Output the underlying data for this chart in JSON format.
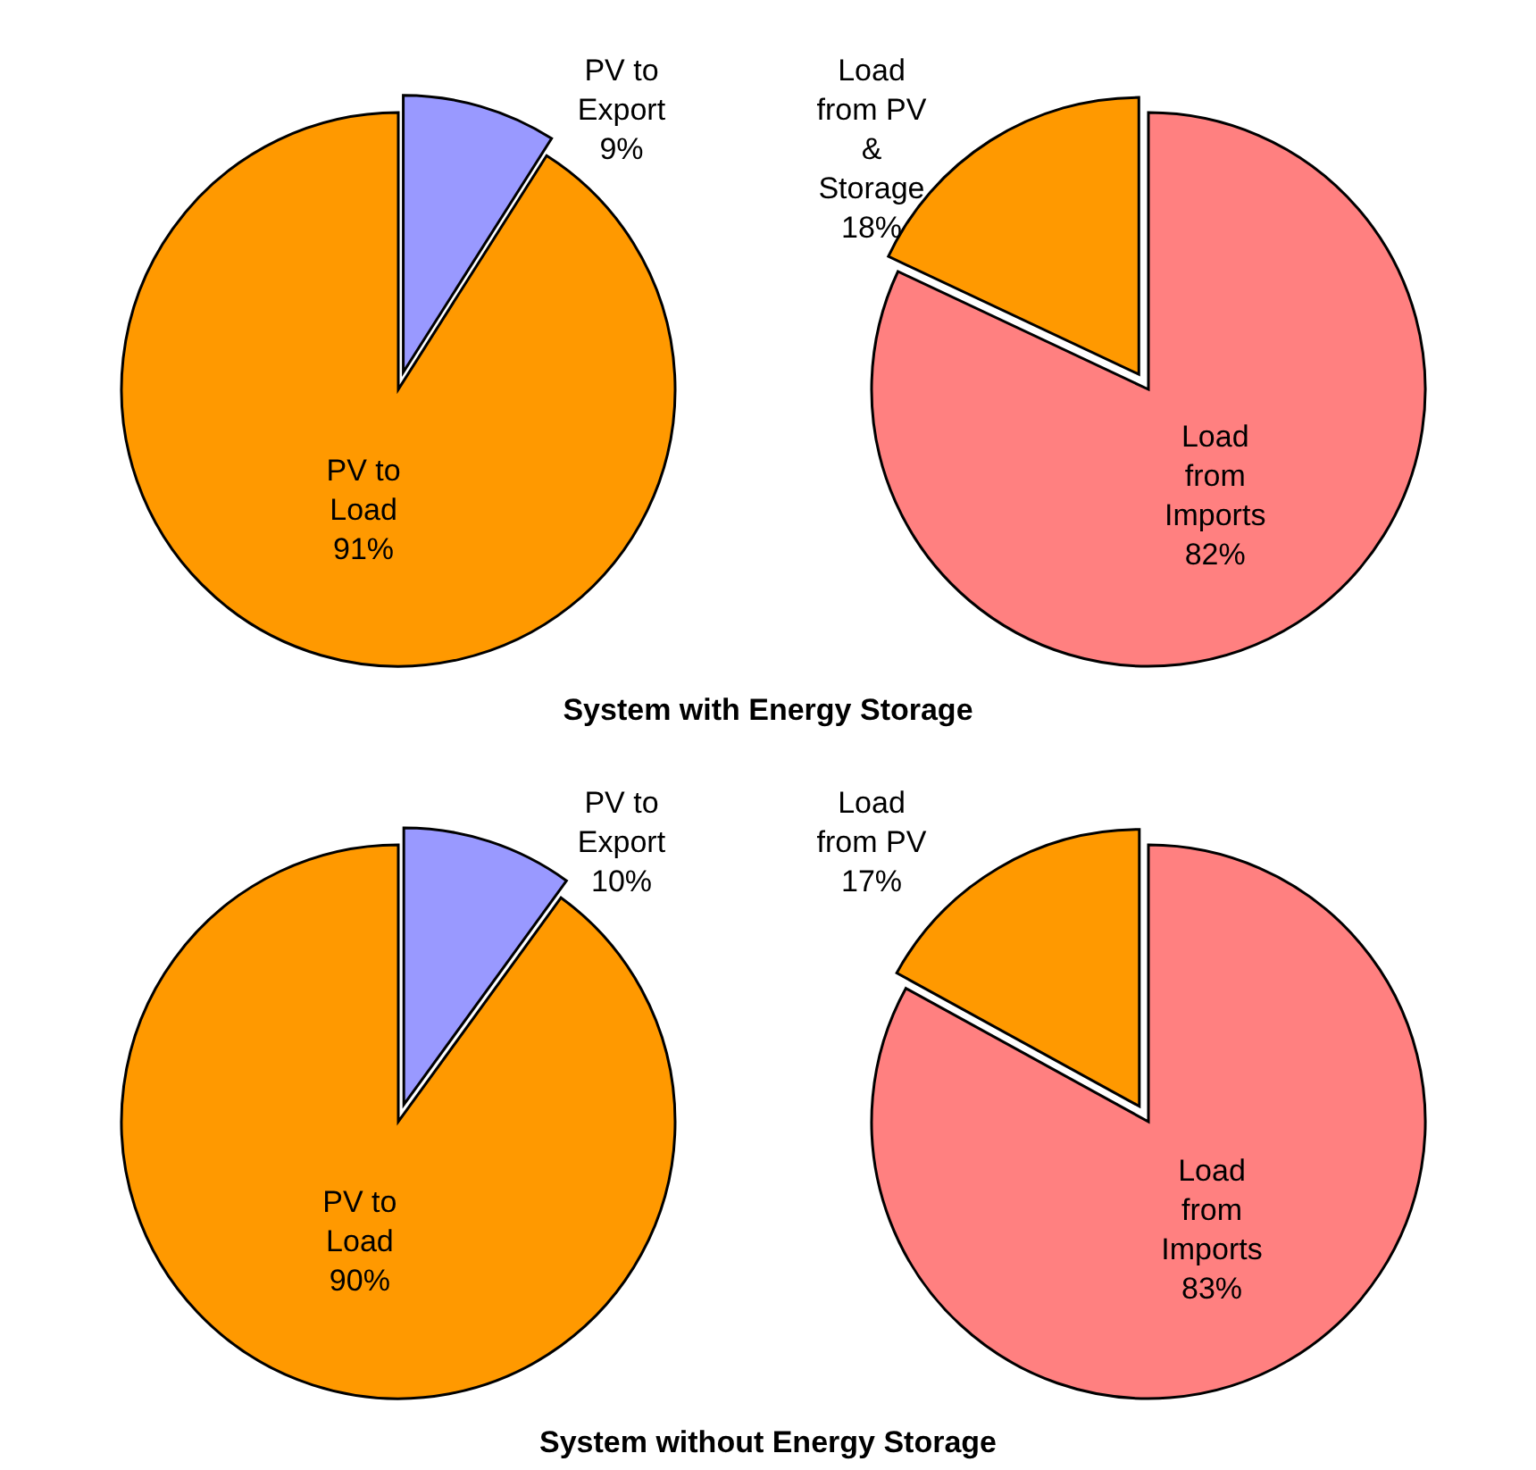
{
  "chart_data": [
    {
      "type": "pie",
      "title": "System with Energy Storage",
      "categories": [
        "PV to Export",
        "PV to Load"
      ],
      "values": [
        9,
        91
      ],
      "colors": [
        "#9999ff",
        "#ff9900"
      ],
      "value_labels": [
        "9%",
        "91%"
      ]
    },
    {
      "type": "pie",
      "categories": [
        "Load from PV & Storage",
        "Load from Imports"
      ],
      "values": [
        18,
        82
      ],
      "colors": [
        "#ff9900",
        "#ff8080"
      ],
      "value_labels": [
        "18%",
        "82%"
      ]
    },
    {
      "type": "pie",
      "title": "System without Energy Storage",
      "categories": [
        "PV to Export",
        "PV to Load"
      ],
      "values": [
        10,
        90
      ],
      "colors": [
        "#9999ff",
        "#ff9900"
      ],
      "value_labels": [
        "10%",
        "90%"
      ]
    },
    {
      "type": "pie",
      "categories": [
        "Load from PV",
        "Load from Imports"
      ],
      "values": [
        17,
        83
      ],
      "colors": [
        "#ff9900",
        "#ff8080"
      ],
      "value_labels": [
        "17%",
        "83%"
      ]
    }
  ]
}
